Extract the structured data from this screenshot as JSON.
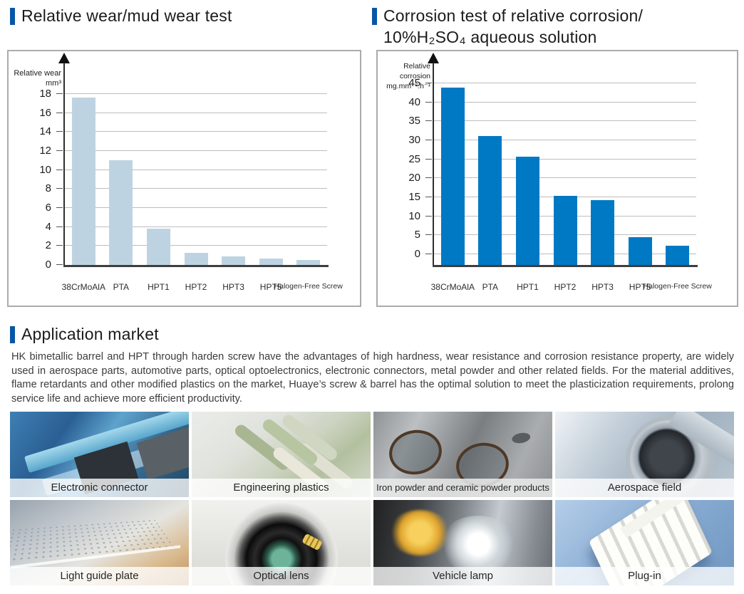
{
  "accent_color": "#0857a6",
  "headers": {
    "wear_title": "Relative wear/mud wear test",
    "corrosion_title_line1": "Corrosion test of relative corrosion/",
    "corrosion_title_line2": "10%H₂SO₄ aqueous solution",
    "application_title": "Application market"
  },
  "application_text": "HK bimetallic barrel and HPT through harden screw have the advantages of high hardness, wear resistance and corrosion resistance property, are widely used in aerospace parts, automotive parts, optical optoelectronics, electronic connectors, metal powder and other related fields. For the material additives, flame retardants and other modified plastics on the market, Huaye’s screw & barrel has the optimal solution to meet the plasticization requirements, prolong service life and achieve more efficient productivity.",
  "chart_data": [
    {
      "type": "bar",
      "title": "Relative wear/mud wear test",
      "ylabel": "Relative wear mm³",
      "ylabel_lines": [
        "Relative wear",
        "mm³"
      ],
      "xlabel": "",
      "categories": [
        "38CrMoAlA",
        "PTA",
        "HPT1",
        "HPT2",
        "HPT3",
        "HPT5",
        "Halogen-Free Screw"
      ],
      "values": [
        17.6,
        11.0,
        3.8,
        1.3,
        0.9,
        0.65,
        0.5
      ],
      "yticks": [
        0,
        2,
        4,
        6,
        8,
        10,
        12,
        14,
        16,
        18
      ],
      "ylim": [
        0,
        19.5
      ],
      "grid": true,
      "legend": false,
      "bar_color": "#bed3e1"
    },
    {
      "type": "bar",
      "title": "Corrosion test of relative corrosion/ 10%H₂SO₄ aqueous solution",
      "ylabel": "Relative corrosion mg.mm⁻².h⁻¹",
      "ylabel_lines": [
        "Relative corrosion",
        "mg.mm⁻².h⁻¹"
      ],
      "xlabel": "",
      "categories": [
        "38CrMoAlA",
        "PTA",
        "HPT1",
        "HPT2",
        "HPT3",
        "HPT5",
        "Halogen-Free Screw"
      ],
      "values": [
        43.8,
        31.2,
        25.7,
        15.4,
        14.2,
        4.5,
        2.2
      ],
      "yticks": [
        0,
        5,
        10,
        15,
        20,
        25,
        30,
        35,
        40,
        45
      ],
      "ylim": [
        -3,
        48
      ],
      "grid": true,
      "legend": false,
      "bar_color": "#0079c4"
    }
  ],
  "gallery": {
    "items": [
      {
        "label": "Electronic connector",
        "photo": "circuit-board-photo"
      },
      {
        "label": "Engineering plastics",
        "photo": "plastic-pellets-photo"
      },
      {
        "label": "Iron powder and ceramic powder products",
        "photo": "eyeglasses-photo"
      },
      {
        "label": "Aerospace field",
        "photo": "jet-engine-photo"
      },
      {
        "label": "Light guide plate",
        "photo": "light-guide-plate-photo"
      },
      {
        "label": "Optical lens",
        "photo": "camera-lens-photo"
      },
      {
        "label": "Vehicle lamp",
        "photo": "car-headlight-photo"
      },
      {
        "label": "Plug-in",
        "photo": "plug-connector-photo"
      }
    ]
  }
}
